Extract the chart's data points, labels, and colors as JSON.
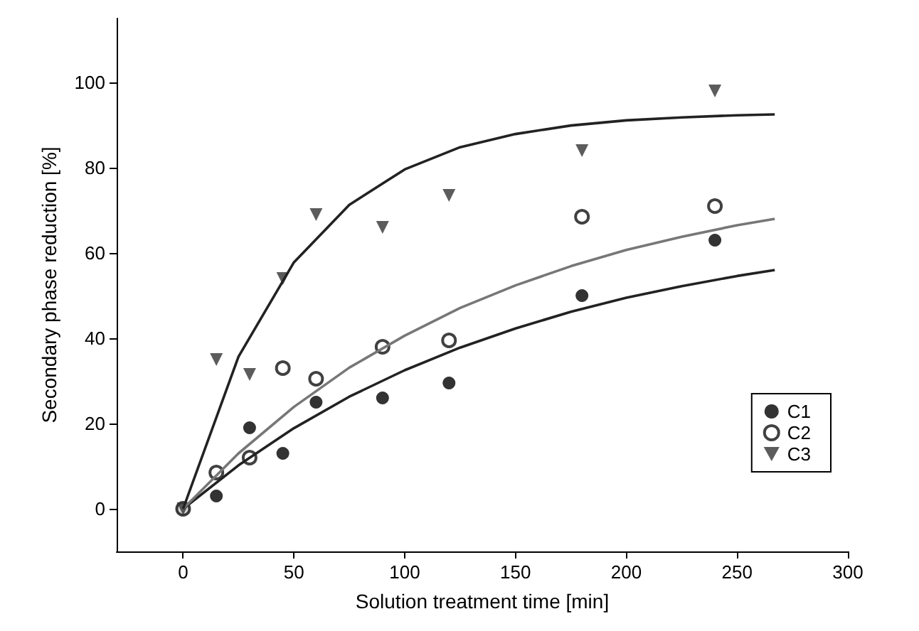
{
  "chart_data": {
    "type": "scatter",
    "xlabel": "Solution treatment time [min]",
    "ylabel": "Secondary phase reduction [%]",
    "x": [
      0,
      15,
      30,
      45,
      60,
      90,
      120,
      180,
      240
    ],
    "series": [
      {
        "name": "C1",
        "color": "#000000",
        "marker": "circle",
        "values": [
          0,
          3,
          19,
          13,
          25,
          26,
          29.5,
          50,
          63
        ]
      },
      {
        "name": "C2",
        "color": "#111111",
        "marker": "circle",
        "values": [
          0,
          8.5,
          12,
          33,
          30.5,
          38,
          39.5,
          68.5,
          71
        ]
      },
      {
        "name": "C3",
        "color": "#333333",
        "marker": "triangle",
        "values": [
          0,
          35,
          31.5,
          54,
          69,
          66,
          73.5,
          84,
          98
        ]
      },
      {
        "type": "line",
        "color": "#222222",
        "marker": "none",
        "x": [
          0,
          25,
          50,
          75,
          100,
          125,
          150,
          175,
          200,
          225,
          250,
          267
        ],
        "values": [
          0,
          10.2,
          18.9,
          26.3,
          32.5,
          37.8,
          42.3,
          46.2,
          49.5,
          52.2,
          54.6,
          56.0
        ]
      },
      {
        "type": "line",
        "color": "#777777",
        "marker": "none",
        "x": [
          0,
          25,
          50,
          75,
          100,
          125,
          150,
          175,
          200,
          225,
          250,
          267
        ],
        "values": [
          0,
          13.0,
          23.9,
          33.1,
          40.6,
          47.1,
          52.4,
          56.9,
          60.7,
          63.8,
          66.5,
          68.0
        ]
      },
      {
        "type": "line",
        "color": "#222222",
        "marker": "none",
        "x": [
          0,
          25,
          50,
          75,
          100,
          125,
          150,
          175,
          200,
          225,
          250,
          267
        ],
        "values": [
          0,
          35.7,
          57.8,
          71.3,
          79.6,
          84.8,
          87.9,
          89.9,
          91.1,
          91.8,
          92.3,
          92.5
        ]
      }
    ],
    "xlim": [
      -30,
      300
    ],
    "xticks": [
      0,
      50,
      100,
      150,
      200,
      250,
      300
    ],
    "ylim": [
      -10,
      115
    ],
    "yticks": [
      0,
      20,
      40,
      60,
      80,
      100
    ],
    "grid": false,
    "legend": "bottom right"
  }
}
